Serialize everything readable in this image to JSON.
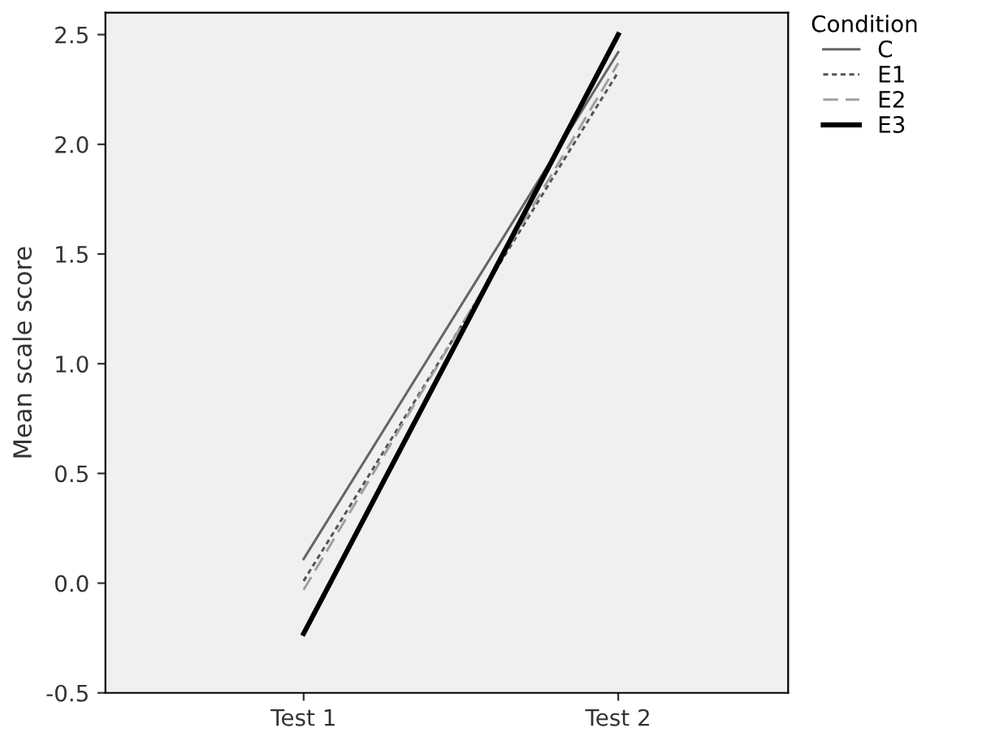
{
  "chart_data": {
    "type": "line",
    "ylabel": "Mean scale score",
    "categories": [
      "Test 1",
      "Test 2"
    ],
    "series": [
      {
        "name": "C",
        "color": "#666666",
        "line_style": "solid",
        "values": [
          0.11,
          2.42
        ]
      },
      {
        "name": "E1",
        "color": "#555555",
        "line_style": "dotted",
        "values": [
          0.01,
          2.33
        ]
      },
      {
        "name": "E2",
        "color": "#a0a0a0",
        "line_style": "dashed",
        "values": [
          -0.03,
          2.37
        ]
      },
      {
        "name": "E3",
        "color": "#000000",
        "line_style": "solid",
        "values": [
          -0.23,
          2.5
        ]
      }
    ],
    "ylim": [
      -0.5,
      2.6
    ],
    "yticks": [
      -0.5,
      {
        "value": 0,
        "label": "0.0"
      },
      0.5,
      {
        "value": 1,
        "label": "1.0"
      },
      1.5,
      {
        "value": 2,
        "label": "2.0"
      },
      2.5
    ],
    "legend": "top right",
    "legend_title": "Condition",
    "grid": false,
    "marker": "none"
  }
}
